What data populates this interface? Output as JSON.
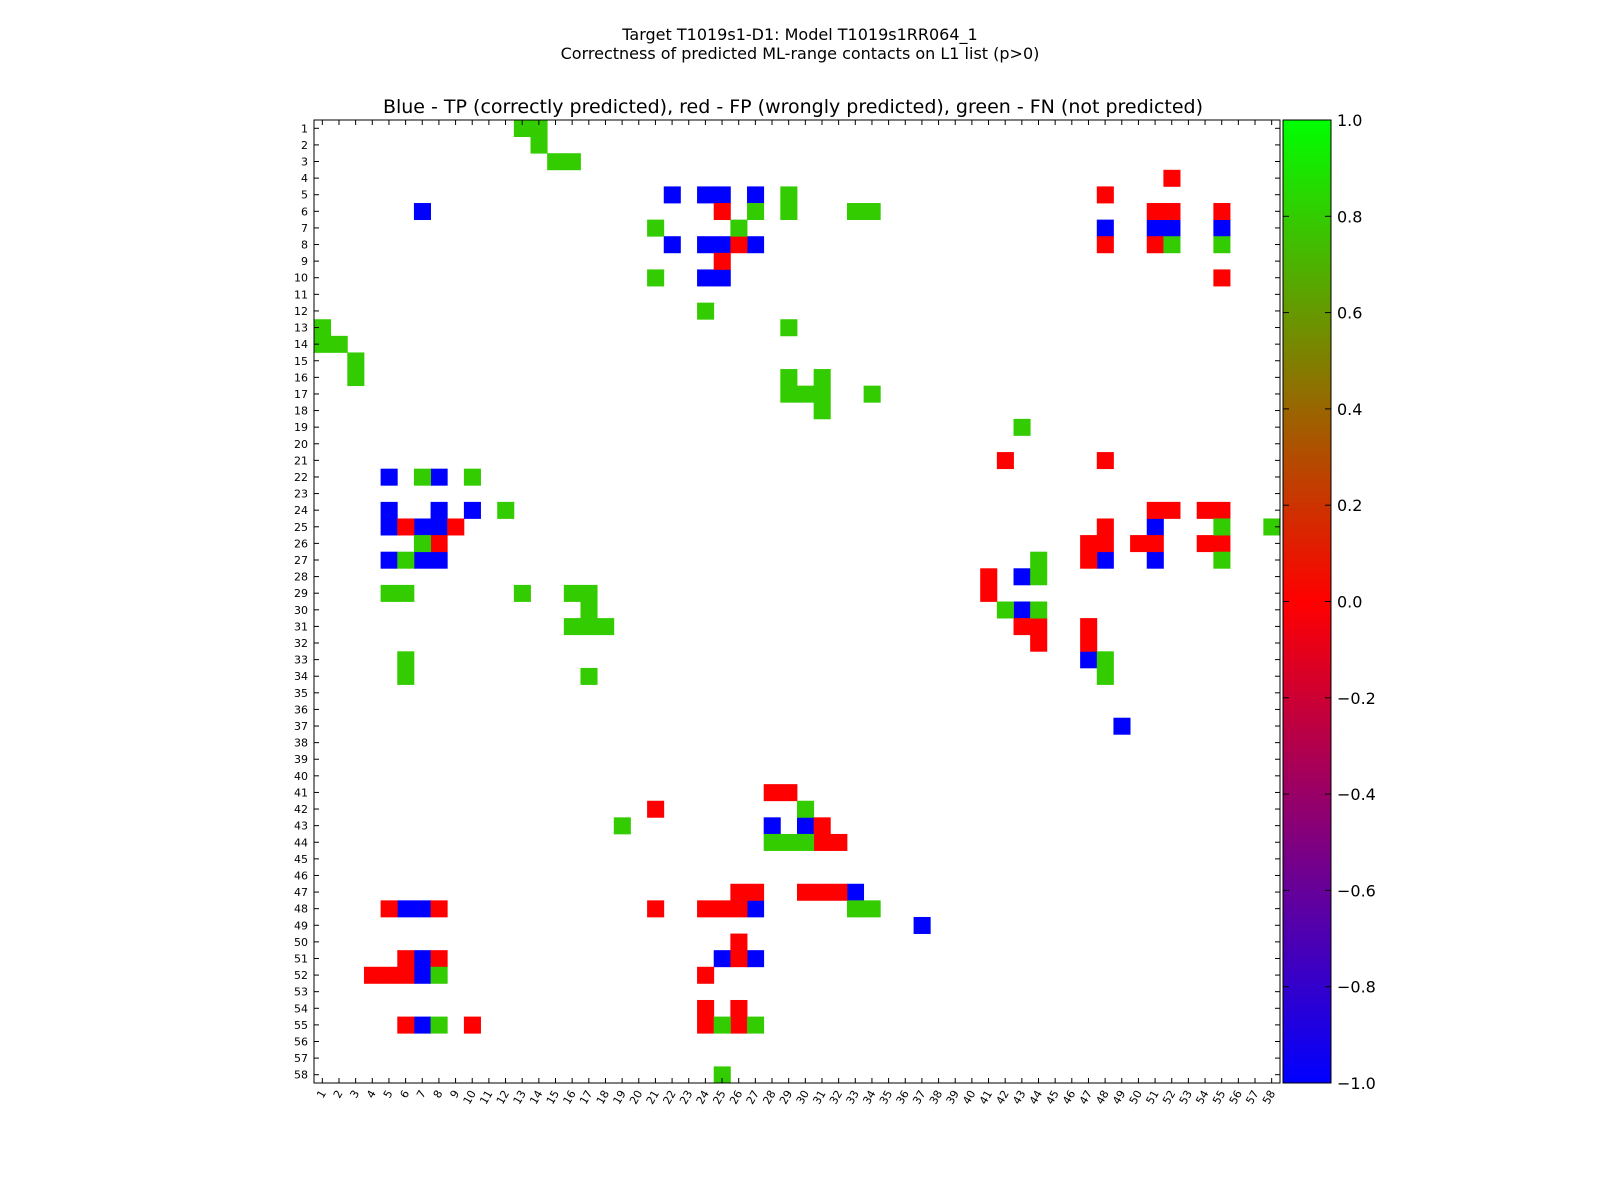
{
  "chart_data": {
    "type": "heatmap",
    "suptitle_line1": "Target T1019s1-D1: Model T1019s1RR064_1",
    "suptitle_line2": "Correctness of predicted ML-range contacts on L1 list (p>0)",
    "title": "Blue - TP (correctly predicted), red - FP (wrongly predicted), green - FN (not predicted)",
    "n": 58,
    "x_tick_labels": [
      "1",
      "2",
      "3",
      "4",
      "5",
      "6",
      "7",
      "8",
      "9",
      "10",
      "11",
      "12",
      "13",
      "14",
      "15",
      "16",
      "17",
      "18",
      "19",
      "20",
      "21",
      "22",
      "23",
      "24",
      "25",
      "26",
      "27",
      "28",
      "29",
      "30",
      "31",
      "32",
      "33",
      "34",
      "35",
      "36",
      "37",
      "38",
      "39",
      "40",
      "41",
      "42",
      "43",
      "44",
      "45",
      "46",
      "47",
      "48",
      "49",
      "50",
      "51",
      "52",
      "53",
      "54",
      "55",
      "56",
      "57",
      "58"
    ],
    "y_tick_labels": [
      "1",
      "2",
      "3",
      "4",
      "5",
      "6",
      "7",
      "8",
      "9",
      "10",
      "11",
      "12",
      "13",
      "14",
      "15",
      "16",
      "17",
      "18",
      "19",
      "20",
      "21",
      "22",
      "23",
      "24",
      "25",
      "26",
      "27",
      "28",
      "29",
      "30",
      "31",
      "32",
      "33",
      "34",
      "35",
      "36",
      "37",
      "38",
      "39",
      "40",
      "41",
      "42",
      "43",
      "44",
      "45",
      "46",
      "47",
      "48",
      "49",
      "50",
      "51",
      "52",
      "53",
      "54",
      "55",
      "56",
      "57",
      "58"
    ],
    "colorbar": {
      "range": [
        -1.0,
        1.0
      ],
      "tick_labels": [
        "1.0",
        "0.8",
        "0.6",
        "0.4",
        "0.2",
        "0.0",
        "−0.2",
        "−0.4",
        "−0.6",
        "−0.8",
        "−1.0"
      ],
      "tick_values": [
        1.0,
        0.8,
        0.6,
        0.4,
        0.2,
        0.0,
        -0.2,
        -0.4,
        -0.6,
        -0.8,
        -1.0
      ],
      "colors": {
        "top": "#00ff00",
        "middle": "#ff0000",
        "bottom": "#0000ff"
      }
    },
    "category_colors": {
      "TP": "#0000ff",
      "FP": "#ff0000",
      "FN": "#33cc00"
    },
    "cells": {
      "TP": [
        [
          5,
          22
        ],
        [
          5,
          24
        ],
        [
          5,
          25
        ],
        [
          5,
          27
        ],
        [
          6,
          7
        ],
        [
          7,
          48
        ],
        [
          7,
          51
        ],
        [
          7,
          52
        ],
        [
          7,
          55
        ],
        [
          8,
          22
        ],
        [
          8,
          24
        ],
        [
          8,
          25
        ],
        [
          8,
          27
        ],
        [
          10,
          24
        ],
        [
          10,
          25
        ],
        [
          22,
          5
        ],
        [
          22,
          8
        ],
        [
          24,
          5
        ],
        [
          24,
          8
        ],
        [
          24,
          10
        ],
        [
          25,
          5
        ],
        [
          25,
          7
        ],
        [
          25,
          8
        ],
        [
          25,
          51
        ],
        [
          27,
          5
        ],
        [
          27,
          7
        ],
        [
          27,
          8
        ],
        [
          27,
          48
        ],
        [
          27,
          51
        ],
        [
          28,
          43
        ],
        [
          30,
          43
        ],
        [
          33,
          47
        ],
        [
          37,
          49
        ],
        [
          43,
          28
        ],
        [
          43,
          30
        ],
        [
          47,
          33
        ],
        [
          48,
          6
        ],
        [
          48,
          7
        ],
        [
          48,
          27
        ],
        [
          49,
          37
        ],
        [
          51,
          7
        ],
        [
          51,
          25
        ],
        [
          51,
          27
        ],
        [
          52,
          7
        ],
        [
          55,
          7
        ]
      ],
      "FP": [
        [
          4,
          52
        ],
        [
          5,
          48
        ],
        [
          6,
          25
        ],
        [
          6,
          51
        ],
        [
          6,
          52
        ],
        [
          6,
          55
        ],
        [
          8,
          26
        ],
        [
          8,
          48
        ],
        [
          8,
          51
        ],
        [
          9,
          25
        ],
        [
          10,
          55
        ],
        [
          21,
          42
        ],
        [
          21,
          48
        ],
        [
          24,
          51
        ],
        [
          24,
          52
        ],
        [
          24,
          54
        ],
        [
          24,
          55
        ],
        [
          25,
          6
        ],
        [
          25,
          9
        ],
        [
          25,
          48
        ],
        [
          26,
          8
        ],
        [
          26,
          47
        ],
        [
          26,
          48
        ],
        [
          26,
          50
        ],
        [
          26,
          51
        ],
        [
          26,
          54
        ],
        [
          26,
          55
        ],
        [
          27,
          47
        ],
        [
          28,
          41
        ],
        [
          29,
          41
        ],
        [
          31,
          43
        ],
        [
          31,
          47
        ],
        [
          31,
          44
        ],
        [
          32,
          44
        ],
        [
          32,
          47
        ],
        [
          41,
          28
        ],
        [
          41,
          29
        ],
        [
          42,
          21
        ],
        [
          43,
          31
        ],
        [
          44,
          31
        ],
        [
          44,
          32
        ],
        [
          47,
          26
        ],
        [
          47,
          27
        ],
        [
          47,
          30
        ],
        [
          47,
          31
        ],
        [
          47,
          32
        ],
        [
          48,
          5
        ],
        [
          48,
          8
        ],
        [
          48,
          21
        ],
        [
          48,
          24
        ],
        [
          48,
          25
        ],
        [
          48,
          26
        ],
        [
          50,
          26
        ],
        [
          51,
          6
        ],
        [
          51,
          8
        ],
        [
          51,
          26
        ],
        [
          52,
          4
        ],
        [
          52,
          5
        ],
        [
          52,
          6
        ],
        [
          52,
          24
        ],
        [
          54,
          24
        ],
        [
          54,
          26
        ],
        [
          55,
          6
        ],
        [
          55,
          10
        ],
        [
          55,
          24
        ],
        [
          55,
          26
        ]
      ],
      "FN": [
        [
          1,
          13
        ],
        [
          1,
          14
        ],
        [
          2,
          14
        ],
        [
          3,
          15
        ],
        [
          3,
          16
        ],
        [
          5,
          29
        ],
        [
          6,
          27
        ],
        [
          6,
          29
        ],
        [
          6,
          33
        ],
        [
          6,
          34
        ],
        [
          7,
          21
        ],
        [
          7,
          26
        ],
        [
          8,
          52
        ],
        [
          8,
          55
        ],
        [
          10,
          21
        ],
        [
          12,
          24
        ],
        [
          13,
          1
        ],
        [
          13,
          29
        ],
        [
          14,
          1
        ],
        [
          14,
          2
        ],
        [
          15,
          3
        ],
        [
          16,
          3
        ],
        [
          16,
          29
        ],
        [
          16,
          31
        ],
        [
          17,
          29
        ],
        [
          17,
          30
        ],
        [
          17,
          31
        ],
        [
          17,
          34
        ],
        [
          18,
          31
        ],
        [
          19,
          43
        ],
        [
          22,
          7
        ],
        [
          22,
          10
        ],
        [
          24,
          12
        ],
        [
          25,
          55
        ],
        [
          25,
          58
        ],
        [
          26,
          7
        ],
        [
          27,
          6
        ],
        [
          27,
          44
        ],
        [
          27,
          55
        ],
        [
          28,
          44
        ],
        [
          29,
          5
        ],
        [
          29,
          6
        ],
        [
          29,
          13
        ],
        [
          29,
          16
        ],
        [
          29,
          17
        ],
        [
          30,
          17
        ],
        [
          30,
          42
        ],
        [
          30,
          44
        ],
        [
          31,
          16
        ],
        [
          31,
          17
        ],
        [
          31,
          18
        ],
        [
          33,
          6
        ],
        [
          33,
          48
        ],
        [
          34,
          6
        ],
        [
          34,
          17
        ],
        [
          34,
          48
        ],
        [
          42,
          30
        ],
        [
          43,
          19
        ],
        [
          44,
          28
        ],
        [
          44,
          29
        ],
        [
          44,
          30
        ],
        [
          48,
          33
        ],
        [
          48,
          34
        ],
        [
          52,
          8
        ],
        [
          55,
          8
        ],
        [
          55,
          25
        ],
        [
          55,
          27
        ],
        [
          58,
          25
        ]
      ]
    }
  }
}
